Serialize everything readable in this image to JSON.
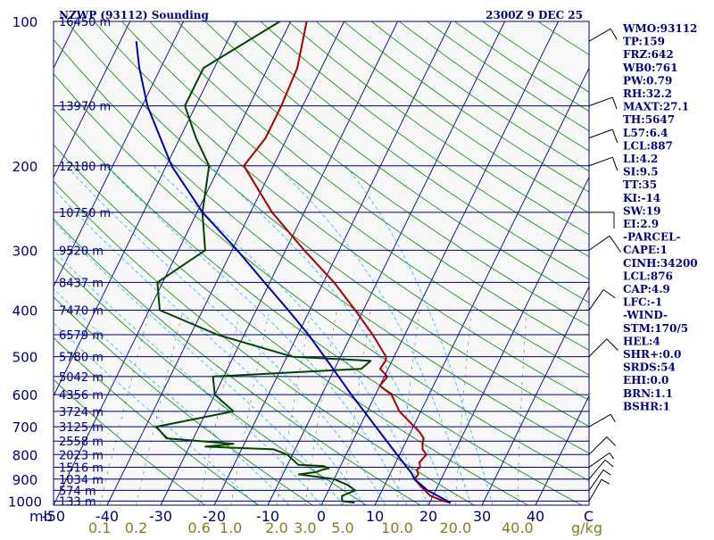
{
  "header": {
    "station": "NZWP (93112) Sounding",
    "time": "2300Z  9 DEC 25"
  },
  "indices": [
    "WMO:93112",
    "TP:159",
    "FRZ:642",
    "WB0:761",
    "PW:0.79",
    "RH:32.2",
    "MAXT:27.1",
    "TH:5647",
    "L57:6.4",
    "LCL:887",
    "LI:4.2",
    "SI:9.5",
    "TT:35",
    "KI:-14",
    "SW:19",
    "EI:2.9",
    "-PARCEL-",
    "CAPE:1",
    "CINH:34200",
    "LCL:876",
    "CAP:4.9",
    "LFC:-1",
    "-WIND-",
    "STM:170/5",
    "HEL:4",
    "SHR+:0.0",
    "SRDS:54",
    "EHI:0.0",
    "BRN:1.1",
    "BSHR:1"
  ],
  "axis_labels": {
    "pressure_unit": "mb",
    "temp_unit": "C",
    "mixing_unit": "g/kg"
  },
  "colors": {
    "isobar": "#000080",
    "isotherm": "#000080",
    "dry_adiabat": "#008800",
    "moist_adiabat": "#30c0ff",
    "mixing_ratio": "#000000",
    "temperature": "#aa0000",
    "dewpoint": "#004400",
    "parcel": "#0000aa",
    "frame": "#000080",
    "plot_bg": "#f7f7f7"
  },
  "chart_data": {
    "type": "line",
    "diagram": "skew-T log-P",
    "pressure_levels": [
      {
        "p": 100,
        "p_label": "100",
        "h_label": "16450 m"
      },
      {
        "p": 150,
        "p_label": "",
        "h_label": "13970 m"
      },
      {
        "p": 200,
        "p_label": "200",
        "h_label": "12180 m"
      },
      {
        "p": 250,
        "p_label": "",
        "h_label": "10750 m"
      },
      {
        "p": 300,
        "p_label": "300",
        "h_label": "9520 m"
      },
      {
        "p": 350,
        "p_label": "",
        "h_label": "8437 m"
      },
      {
        "p": 400,
        "p_label": "400",
        "h_label": "7470 m"
      },
      {
        "p": 450,
        "p_label": "",
        "h_label": "6579 m"
      },
      {
        "p": 500,
        "p_label": "500",
        "h_label": "5780 m"
      },
      {
        "p": 550,
        "p_label": "",
        "h_label": "5042 m"
      },
      {
        "p": 600,
        "p_label": "600",
        "h_label": "4356 m"
      },
      {
        "p": 650,
        "p_label": "",
        "h_label": "3724 m"
      },
      {
        "p": 700,
        "p_label": "700",
        "h_label": "3125 m"
      },
      {
        "p": 750,
        "p_label": "",
        "h_label": "2558 m"
      },
      {
        "p": 800,
        "p_label": "800",
        "h_label": "2023 m"
      },
      {
        "p": 850,
        "p_label": "",
        "h_label": "1516 m"
      },
      {
        "p": 900,
        "p_label": "900",
        "h_label": "1034 m"
      },
      {
        "p": 950,
        "p_label": "",
        "h_label": "574 m"
      },
      {
        "p": 1000,
        "p_label": "1000",
        "h_label": "133 m"
      }
    ],
    "temp_ticks": [
      -50,
      -40,
      -30,
      -20,
      -10,
      0,
      10,
      20,
      30,
      40
    ],
    "temp_tick_labels": [
      "-50",
      "-40",
      "-30",
      "-20",
      "-10",
      "0",
      "10",
      "20",
      "30",
      "40"
    ],
    "mixing_ratio_labels": [
      "0.1",
      "0.2",
      "0.6",
      "1.0",
      "2.0",
      "3.0",
      "5.0",
      "10.0",
      "20.0",
      "40.0"
    ],
    "mixing_ratio_values": [
      0.1,
      0.2,
      0.6,
      1.0,
      2.0,
      3.0,
      5.0,
      10.0,
      20.0,
      40.0
    ],
    "xlim": [
      -50,
      50
    ],
    "ylim": [
      1020,
      100
    ],
    "skew": 49,
    "dry_adiabat_thetas": [
      250,
      260,
      270,
      280,
      290,
      300,
      310,
      320,
      330,
      340,
      350,
      360,
      370,
      380,
      390,
      400,
      410,
      420,
      430,
      440,
      450,
      460,
      470,
      480,
      490,
      500,
      520,
      540,
      560,
      580,
      600,
      620,
      640
    ],
    "moist_adiabat_starts": [
      -12,
      -6,
      0,
      4,
      8,
      12,
      16,
      20,
      24,
      28,
      32
    ],
    "series": [
      {
        "name": "temperature",
        "points": [
          [
            1008,
            23.9
          ],
          [
            1000,
            22.5
          ],
          [
            975,
            19.5
          ],
          [
            950,
            18
          ],
          [
            925,
            16.5
          ],
          [
            900,
            15
          ],
          [
            880,
            15.3
          ],
          [
            860,
            14.6
          ],
          [
            850,
            15
          ],
          [
            830,
            14.4
          ],
          [
            800,
            15
          ],
          [
            780,
            13.8
          ],
          [
            760,
            13.3
          ],
          [
            740,
            13
          ],
          [
            720,
            11.8
          ],
          [
            700,
            10.2
          ],
          [
            650,
            6
          ],
          [
            600,
            3
          ],
          [
            575,
            0
          ],
          [
            550,
            0.6
          ],
          [
            530,
            -1.5
          ],
          [
            510,
            -1.2
          ],
          [
            500,
            -1.5
          ],
          [
            450,
            -6
          ],
          [
            400,
            -11.5
          ],
          [
            350,
            -18
          ],
          [
            300,
            -26.5
          ],
          [
            250,
            -36
          ],
          [
            200,
            -45.5
          ],
          [
            175,
            -44
          ],
          [
            150,
            -44
          ],
          [
            125,
            -44.5
          ],
          [
            100,
            -47
          ]
        ]
      },
      {
        "name": "dewpoint",
        "points": [
          [
            1008,
            6
          ],
          [
            1000,
            3.5
          ],
          [
            975,
            3
          ],
          [
            950,
            5
          ],
          [
            925,
            3
          ],
          [
            900,
            0
          ],
          [
            880,
            -7
          ],
          [
            870,
            -4
          ],
          [
            860,
            -3
          ],
          [
            855,
            -2
          ],
          [
            850,
            -2.5
          ],
          [
            848,
            -4
          ],
          [
            846,
            -3
          ],
          [
            840,
            -8
          ],
          [
            800,
            -11
          ],
          [
            780,
            -14
          ],
          [
            770,
            -27
          ],
          [
            760,
            -22
          ],
          [
            740,
            -35
          ],
          [
            700,
            -38
          ],
          [
            650,
            -25
          ],
          [
            600,
            -30
          ],
          [
            550,
            -32
          ],
          [
            530,
            -5
          ],
          [
            510,
            -4
          ],
          [
            500,
            -19
          ],
          [
            450,
            -35
          ],
          [
            400,
            -48
          ],
          [
            350,
            -51
          ],
          [
            300,
            -45
          ],
          [
            250,
            -49
          ],
          [
            200,
            -52
          ],
          [
            175,
            -57
          ],
          [
            150,
            -62
          ],
          [
            125,
            -62
          ],
          [
            100,
            -52
          ]
        ]
      },
      {
        "name": "parcel",
        "points": [
          [
            1008,
            23.9
          ],
          [
            950,
            18.5
          ],
          [
            900,
            15
          ],
          [
            876,
            14
          ],
          [
            850,
            12.5
          ],
          [
            800,
            9.5
          ],
          [
            700,
            3
          ],
          [
            600,
            -4.5
          ],
          [
            500,
            -13
          ],
          [
            450,
            -18
          ],
          [
            400,
            -24
          ],
          [
            350,
            -31
          ],
          [
            300,
            -39
          ],
          [
            250,
            -49
          ],
          [
            200,
            -59
          ],
          [
            150,
            -69
          ],
          [
            125,
            -74
          ],
          [
            110,
            -77
          ]
        ]
      }
    ]
  }
}
